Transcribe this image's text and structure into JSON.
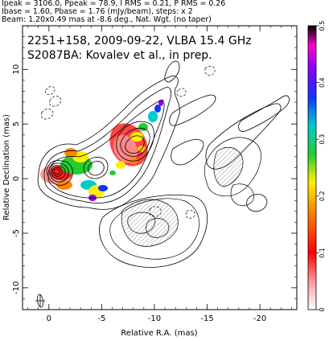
{
  "header": {
    "line1": "Ipeak = 3106.0, Ppeak = 78.9, I RMS = 0.21, P RMS = 0.26",
    "line2": "Ibase = 1.60, Pbase = 1.76 (mJy/beam), steps: x 2",
    "line3": "Beam: 1.20x0.49 mas at -8.6 deg., Nat. Wgt. (no taper)"
  },
  "plot_text": {
    "line1": "2251+158, 2009-09-22, VLBA 15.4 GHz",
    "line2": "S2087BA: Kovalev et al., in prep."
  },
  "chart_data": {
    "type": "heatmap",
    "title": "2251+158, 2009-09-22, VLBA 15.4 GHz",
    "subtitle": "S2087BA: Kovalev et al., in prep.",
    "xlabel": "Relative R.A. (mas)",
    "ylabel": "Relative Declination (mas)",
    "xlim": [
      2.5,
      -23.5
    ],
    "ylim": [
      -12,
      14
    ],
    "x_ticks": [
      0,
      -5,
      -10,
      -15,
      -20
    ],
    "x_tick_labels": [
      "0",
      "-5",
      "-10",
      "-15",
      "-20"
    ],
    "y_ticks": [
      -10,
      -5,
      0,
      5,
      10
    ],
    "y_tick_labels": [
      "-10",
      "-5",
      "0",
      "5",
      "10"
    ],
    "colorbar": {
      "range": [
        0,
        0.5
      ],
      "ticks": [
        0,
        0.1,
        0.2,
        0.3,
        0.4,
        0.5
      ],
      "tick_labels": [
        "0",
        "0.1",
        "0.2",
        "0.3",
        "0.4",
        "0.5"
      ],
      "colors": [
        "#ffffff",
        "#ff8888",
        "#ff0000",
        "#ff7700",
        "#ffee00",
        "#22cc33",
        "#00cccc",
        "#1133ff",
        "#8800ff",
        "#ff00cc",
        "#000000"
      ]
    },
    "ipeak_mJy_per_beam": 3106.0,
    "ppeak_mJy_per_beam": 78.9,
    "i_rms": 0.21,
    "p_rms": 0.26,
    "ibase": 1.6,
    "pbase": 1.76,
    "contour_step_factor": 2,
    "beam": {
      "major_mas": 1.2,
      "minor_mas": 0.49,
      "pa_deg": -8.6
    },
    "core": {
      "x": 0,
      "y": 0
    },
    "grid": false,
    "legend": "none"
  }
}
